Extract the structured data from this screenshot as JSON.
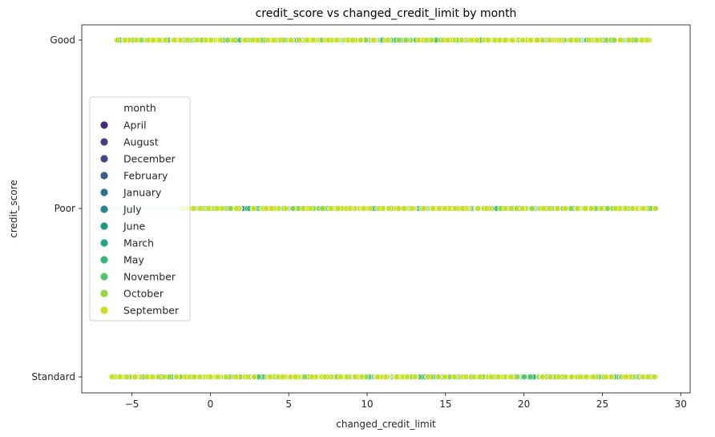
{
  "chart_data": {
    "type": "scatter",
    "title": "credit_score vs changed_credit_limit by month",
    "xlabel": "changed_credit_limit",
    "ylabel": "credit_score",
    "xlim": [
      -8.2,
      30.6
    ],
    "x_ticks": [
      -5,
      0,
      5,
      10,
      15,
      20,
      25,
      30
    ],
    "x_tick_labels": [
      "−5",
      "0",
      "5",
      "10",
      "15",
      "20",
      "25",
      "30"
    ],
    "categories": [
      "Good",
      "Poor",
      "Standard"
    ],
    "grid": false,
    "legend": {
      "title": "month",
      "placement": "center-left"
    },
    "series": [
      {
        "name": "April",
        "color": "#472c7a",
        "extents": {
          "Good": [
            -6.0,
            28.0
          ],
          "Poor": [
            -2.0,
            28.4
          ],
          "Standard": [
            -6.3,
            28.4
          ]
        }
      },
      {
        "name": "August",
        "color": "#433e85",
        "extents": {
          "Good": [
            -6.0,
            28.0
          ],
          "Poor": [
            -2.0,
            28.4
          ],
          "Standard": [
            -6.3,
            28.4
          ]
        }
      },
      {
        "name": "December",
        "color": "#3e4a89",
        "extents": {
          "Good": [
            -6.0,
            28.0
          ],
          "Poor": [
            -2.0,
            28.4
          ],
          "Standard": [
            -6.3,
            28.4
          ]
        }
      },
      {
        "name": "February",
        "color": "#355f8d",
        "extents": {
          "Good": [
            -6.0,
            28.0
          ],
          "Poor": [
            -2.0,
            28.4
          ],
          "Standard": [
            -6.3,
            28.4
          ]
        }
      },
      {
        "name": "January",
        "color": "#2c738e",
        "extents": {
          "Good": [
            -6.0,
            28.0
          ],
          "Poor": [
            -5.0,
            28.4
          ],
          "Standard": [
            -6.3,
            28.4
          ]
        }
      },
      {
        "name": "July",
        "color": "#25848e",
        "extents": {
          "Good": [
            -6.0,
            28.0
          ],
          "Poor": [
            -5.0,
            28.4
          ],
          "Standard": [
            -6.3,
            28.4
          ]
        }
      },
      {
        "name": "June",
        "color": "#1f988b",
        "extents": {
          "Good": [
            -6.0,
            28.0
          ],
          "Poor": [
            -5.0,
            28.4
          ],
          "Standard": [
            -6.3,
            28.4
          ]
        }
      },
      {
        "name": "March",
        "color": "#22a884",
        "extents": {
          "Good": [
            -6.0,
            28.0
          ],
          "Poor": [
            -5.0,
            28.4
          ],
          "Standard": [
            -6.3,
            28.4
          ]
        }
      },
      {
        "name": "May",
        "color": "#35b779",
        "extents": {
          "Good": [
            -6.0,
            28.0
          ],
          "Poor": [
            -5.0,
            28.4
          ],
          "Standard": [
            -6.3,
            28.4
          ]
        }
      },
      {
        "name": "November",
        "color": "#54c568",
        "extents": {
          "Good": [
            -6.0,
            28.0
          ],
          "Poor": [
            -5.0,
            28.4
          ],
          "Standard": [
            -6.3,
            28.4
          ]
        }
      },
      {
        "name": "October",
        "color": "#95d840",
        "extents": {
          "Good": [
            -6.0,
            28.0
          ],
          "Poor": [
            -5.0,
            28.4
          ],
          "Standard": [
            -6.3,
            28.4
          ]
        }
      },
      {
        "name": "September",
        "color": "#c8e020",
        "extents": {
          "Good": [
            -6.0,
            28.0
          ],
          "Poor": [
            -5.0,
            28.4
          ],
          "Standard": [
            -6.3,
            28.4
          ]
        }
      }
    ]
  }
}
